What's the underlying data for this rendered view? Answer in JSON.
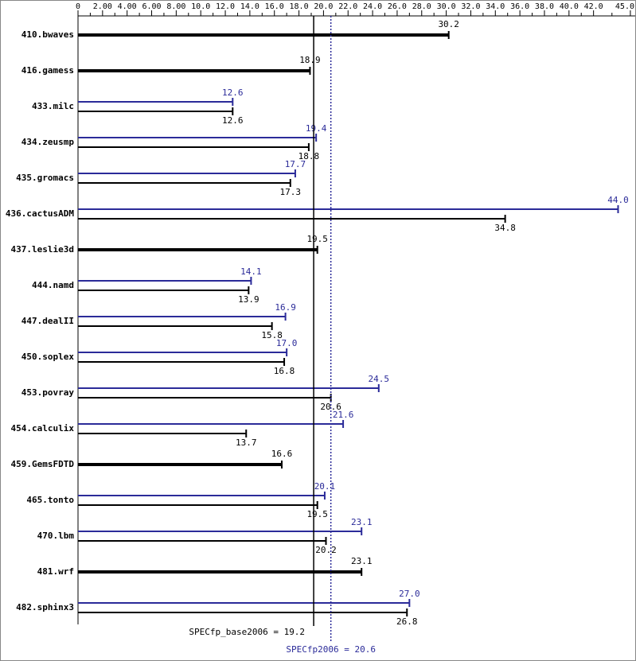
{
  "chart_data": {
    "type": "bar",
    "categories": [
      "410.bwaves",
      "416.gamess",
      "433.milc",
      "434.zeusmp",
      "435.gromacs",
      "436.cactusADM",
      "437.leslie3d",
      "444.namd",
      "447.dealII",
      "450.soplex",
      "453.povray",
      "454.calculix",
      "459.GemsFDTD",
      "465.tonto",
      "470.lbm",
      "481.wrf",
      "482.sphinx3"
    ],
    "series": [
      {
        "color": "#000000",
        "values": [
          30.2,
          18.9,
          12.6,
          18.8,
          17.3,
          34.8,
          19.5,
          13.9,
          15.8,
          16.8,
          20.6,
          13.7,
          16.6,
          19.5,
          20.2,
          23.1,
          26.8
        ],
        "value_labels": [
          "30.2",
          "18.9",
          "12.6",
          "18.8",
          "17.3",
          "34.8",
          "19.5",
          "13.9",
          "15.8",
          "16.8",
          "20.6",
          "13.7",
          "16.6",
          "19.5",
          "20.2",
          "23.1",
          "26.8"
        ]
      },
      {
        "color": "#2b2b99",
        "values": [
          null,
          null,
          12.6,
          19.4,
          17.7,
          44.0,
          null,
          14.1,
          16.9,
          17.0,
          24.5,
          21.6,
          null,
          20.1,
          23.1,
          null,
          27.0
        ],
        "value_labels": [
          null,
          null,
          "12.6",
          "19.4",
          "17.7",
          "44.0",
          null,
          "14.1",
          "16.9",
          "17.0",
          "24.5",
          "21.6",
          null,
          "20.1",
          "23.1",
          null,
          "27.0"
        ]
      }
    ],
    "xlim": [
      0,
      45.2
    ],
    "xticks": [
      0,
      {
        "value": 2,
        "label": "2.00"
      },
      {
        "value": 4,
        "label": "4.00"
      },
      {
        "value": 6,
        "label": "6.00"
      },
      {
        "value": 8,
        "label": "8.00"
      },
      {
        "value": 10,
        "label": "10.0"
      },
      {
        "value": 12,
        "label": "12.0"
      },
      {
        "value": 14,
        "label": "14.0"
      },
      {
        "value": 16,
        "label": "16.0"
      },
      {
        "value": 18,
        "label": "18.0"
      },
      {
        "value": 20,
        "label": "20.0"
      },
      {
        "value": 22,
        "label": "22.0"
      },
      {
        "value": 24,
        "label": "24.0"
      },
      {
        "value": 26,
        "label": "26.0"
      },
      {
        "value": 28,
        "label": "28.0"
      },
      {
        "value": 30,
        "label": "30.0"
      },
      {
        "value": 32,
        "label": "32.0"
      },
      {
        "value": 34,
        "label": "34.0"
      },
      {
        "value": 36,
        "label": "36.0"
      },
      {
        "value": 38,
        "label": "38.0"
      },
      {
        "value": 40,
        "label": "40.0"
      },
      {
        "value": 42,
        "label": "42.0"
      },
      {
        "value": 45,
        "label": "45.0"
      }
    ],
    "reference_lines": [
      {
        "label": "SPECfp_base2006 = 19.2",
        "value": 19.2,
        "color": "#000000"
      },
      {
        "label": "SPECfp2006 = 20.6",
        "value": 20.6,
        "color": "#2b2b99"
      }
    ]
  }
}
